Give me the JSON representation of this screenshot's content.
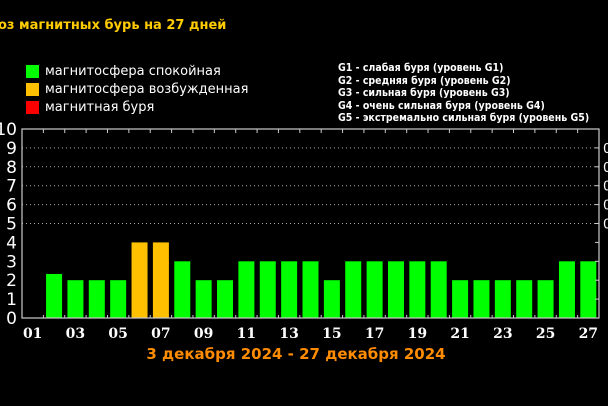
{
  "title": "оз магнитных бурь на 27 дней",
  "legend": [
    {
      "label": "магнитосфера спокойная",
      "color": "#00ff00"
    },
    {
      "label": "магнитосфера возбужденная",
      "color": "#ffc000"
    },
    {
      "label": "магнитная буря",
      "color": "#ff0000"
    }
  ],
  "g_levels": [
    "G1 - слабая буря (уровень G1)",
    "G2 - средняя буря (уровень G2)",
    "G3 - сильная буря (уровень G3)",
    "G4 - очень сильная буря (уровень G4)",
    "G5 - экстремально сильная буря (уровень G5)"
  ],
  "chart_data": {
    "type": "bar",
    "xlabel": "3 декабря 2024 - 27 декабря 2024",
    "ylim": [
      0,
      10
    ],
    "yticks": [
      "0",
      "1",
      "2",
      "3",
      "4",
      "5",
      "6",
      "7",
      "8",
      "9",
      "10"
    ],
    "right_ticks": [
      "0",
      "0",
      "0",
      "0",
      "0"
    ],
    "xtick_labels": [
      "01",
      "03",
      "05",
      "07",
      "09",
      "11",
      "13",
      "15",
      "17",
      "19",
      "21",
      "23",
      "25",
      "27"
    ],
    "days": [
      "01",
      "02",
      "03",
      "04",
      "05",
      "06",
      "07",
      "08",
      "09",
      "10",
      "11",
      "12",
      "13",
      "14",
      "15",
      "16",
      "17",
      "18",
      "19",
      "20",
      "21",
      "22",
      "23",
      "24",
      "25",
      "26",
      "27"
    ],
    "values": [
      0,
      2.33,
      2,
      2,
      2,
      4,
      4,
      3,
      2,
      2,
      3,
      3,
      3,
      3,
      2,
      3,
      3,
      3,
      3,
      3,
      2,
      2,
      2,
      2,
      2,
      3,
      3
    ],
    "status": [
      "quiet",
      "quiet",
      "quiet",
      "quiet",
      "quiet",
      "active",
      "active",
      "quiet",
      "quiet",
      "quiet",
      "quiet",
      "quiet",
      "quiet",
      "quiet",
      "quiet",
      "quiet",
      "quiet",
      "quiet",
      "quiet",
      "quiet",
      "quiet",
      "quiet",
      "quiet",
      "quiet",
      "quiet",
      "quiet",
      "quiet"
    ],
    "colors": {
      "quiet": "#00ff00",
      "active": "#ffc000",
      "storm": "#ff0000",
      "xlabel": "#ff8c00"
    }
  }
}
